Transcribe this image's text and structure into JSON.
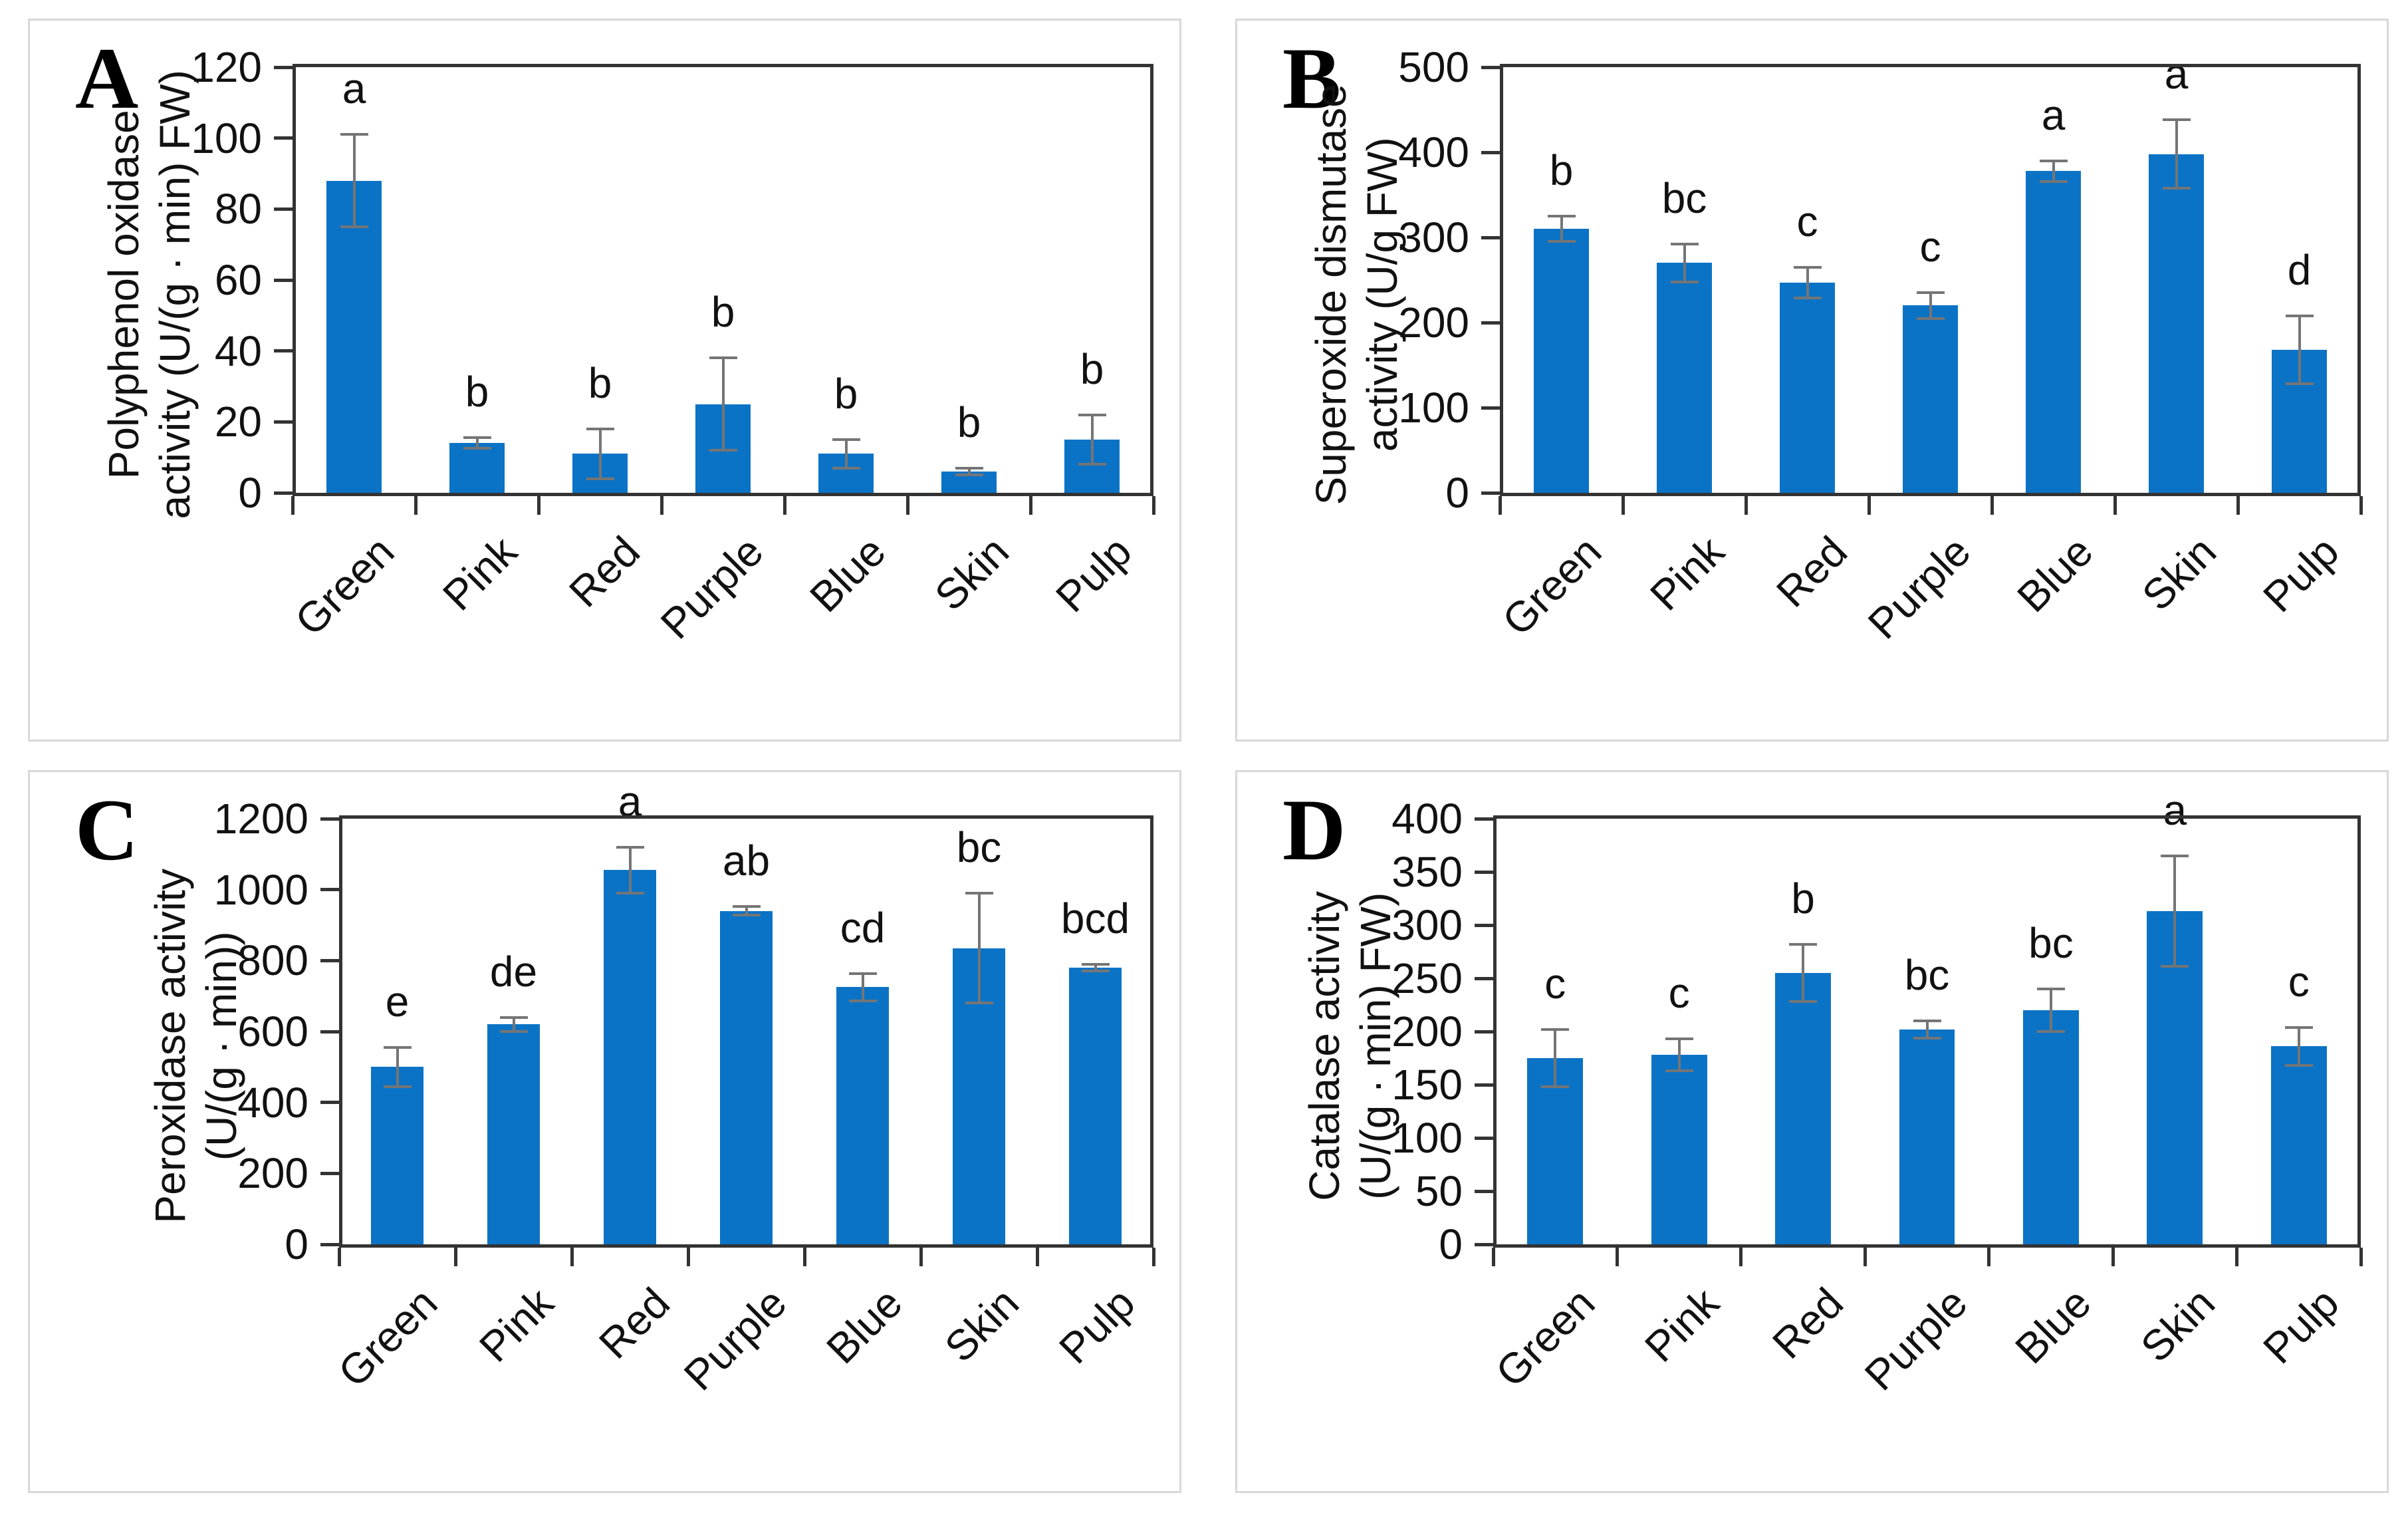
{
  "colors": {
    "bar": "#0B73C6",
    "error_bar": "#757575",
    "axis": "#333333",
    "panel_border": "#d8d8d8",
    "text": "#111111",
    "background": "#ffffff"
  },
  "chart_data": [
    {
      "type": "bar",
      "panel_letter": "A",
      "ylabel_line1": "Polyphenol oxidase",
      "ylabel_line2": "activity (U/(g · min) FW)",
      "ylim": [
        0,
        120
      ],
      "yticks": [
        0,
        20,
        40,
        60,
        80,
        100,
        120
      ],
      "categories": [
        "Green",
        "Pink",
        "Red",
        "Purple",
        "Blue",
        "Skin",
        "Pulp"
      ],
      "values": [
        88,
        14,
        11,
        25,
        11,
        6,
        15
      ],
      "errors": [
        13,
        1.5,
        7,
        13,
        4,
        1,
        7
      ],
      "sig_letters": [
        "a",
        "b",
        "b",
        "b",
        "b",
        "b",
        "b"
      ],
      "bar_color": "#0B73C6",
      "grid": false,
      "legend": null
    },
    {
      "type": "bar",
      "panel_letter": "B",
      "ylabel_line1": "Superoxide dismutase",
      "ylabel_line2": "activity (U/g FW)",
      "ylim": [
        0,
        500
      ],
      "yticks": [
        0,
        100,
        200,
        300,
        400,
        500
      ],
      "categories": [
        "Green",
        "Pink",
        "Red",
        "Purple",
        "Blue",
        "Skin",
        "Pulp"
      ],
      "values": [
        310,
        270,
        247,
        220,
        378,
        398,
        168
      ],
      "errors": [
        15,
        22,
        18,
        15,
        12,
        40,
        40
      ],
      "sig_letters": [
        "b",
        "bc",
        "c",
        "c",
        "a",
        "a",
        "d"
      ],
      "bar_color": "#0B73C6",
      "grid": false,
      "legend": null
    },
    {
      "type": "bar",
      "panel_letter": "C",
      "ylabel_line1": "Peroxidase activity",
      "ylabel_line2": "(U/(g · min))",
      "ylim": [
        0,
        1200
      ],
      "yticks": [
        0,
        200,
        400,
        600,
        800,
        1000,
        1200
      ],
      "categories": [
        "Green",
        "Pink",
        "Red",
        "Purple",
        "Blue",
        "Skin",
        "Pulp"
      ],
      "values": [
        500,
        620,
        1055,
        940,
        725,
        835,
        780
      ],
      "errors": [
        55,
        20,
        65,
        12,
        38,
        155,
        10
      ],
      "sig_letters": [
        "e",
        "de",
        "a",
        "ab",
        "cd",
        "bc",
        "bcd"
      ],
      "bar_color": "#0B73C6",
      "grid": false,
      "legend": null
    },
    {
      "type": "bar",
      "panel_letter": "D",
      "ylabel_line1": "Catalase activity",
      "ylabel_line2": "(U/(g · min) FW)",
      "ylim": [
        0,
        400
      ],
      "yticks": [
        0,
        50,
        100,
        150,
        200,
        250,
        300,
        350,
        400
      ],
      "categories": [
        "Green",
        "Pink",
        "Red",
        "Purple",
        "Blue",
        "Skin",
        "Pulp"
      ],
      "values": [
        175,
        178,
        255,
        202,
        220,
        313,
        186
      ],
      "errors": [
        27,
        15,
        27,
        8,
        20,
        52,
        18
      ],
      "sig_letters": [
        "c",
        "c",
        "b",
        "bc",
        "bc",
        "a",
        "c"
      ],
      "bar_color": "#0B73C6",
      "grid": false,
      "legend": null
    }
  ]
}
